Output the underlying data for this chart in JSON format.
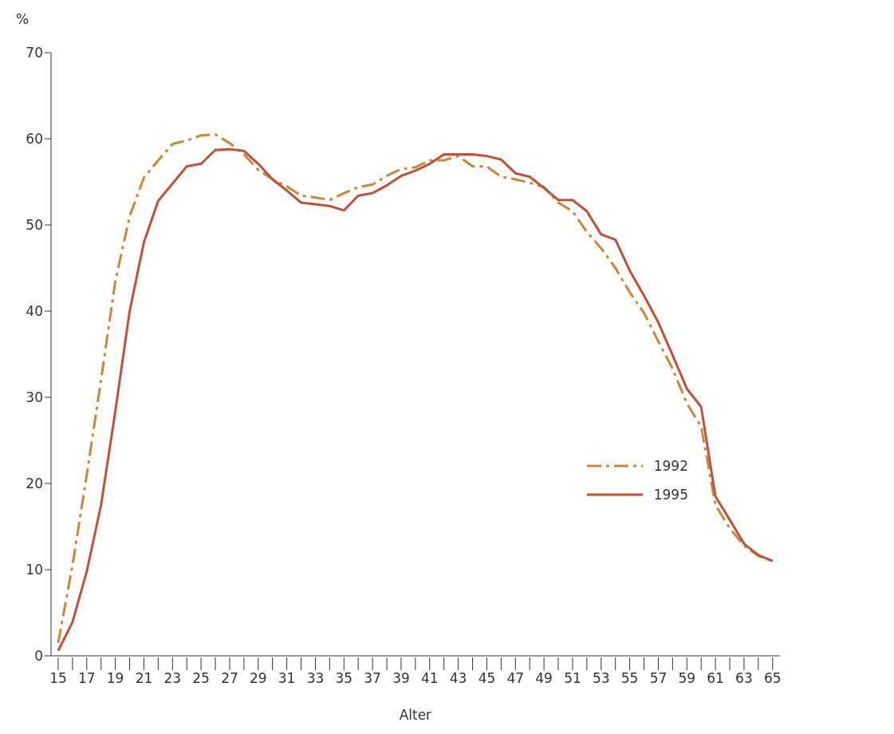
{
  "chart_data": {
    "type": "line",
    "xlabel": "Alter",
    "ylabel": "%",
    "x": [
      15,
      16,
      17,
      18,
      19,
      20,
      21,
      22,
      23,
      24,
      25,
      26,
      27,
      28,
      29,
      30,
      31,
      32,
      33,
      34,
      35,
      36,
      37,
      38,
      39,
      40,
      41,
      42,
      43,
      44,
      45,
      46,
      47,
      48,
      49,
      50,
      51,
      52,
      53,
      54,
      55,
      56,
      57,
      58,
      59,
      60,
      61,
      62,
      63,
      64,
      65
    ],
    "series": [
      {
        "name": "1992",
        "color": "#c8893e",
        "line_style": "dashed",
        "values": [
          1.5,
          10.5,
          21,
          32,
          43.5,
          51,
          55.5,
          57.5,
          59.4,
          59.8,
          60.4,
          60.5,
          59.5,
          58.2,
          56.4,
          55.3,
          54.5,
          53.4,
          53.2,
          52.9,
          53.7,
          54.4,
          54.7,
          55.7,
          56.5,
          56.7,
          57.5,
          57.5,
          58.0,
          56.8,
          56.8,
          55.6,
          55.3,
          54.9,
          54.4,
          52.6,
          51.6,
          49.2,
          47.3,
          45.0,
          42.2,
          39.8,
          36.5,
          33.3,
          29.3,
          26.6,
          17.5,
          14.8,
          12.8,
          11.6,
          11.0
        ]
      },
      {
        "name": "1995",
        "color": "#c0513a",
        "line_style": "solid",
        "values": [
          0.6,
          3.9,
          9.8,
          17.5,
          28.4,
          40.0,
          48.0,
          52.8,
          54.8,
          56.8,
          57.1,
          58.7,
          58.8,
          58.6,
          57.1,
          55.3,
          54.0,
          52.6,
          52.4,
          52.2,
          51.7,
          53.4,
          53.7,
          54.6,
          55.7,
          56.3,
          57.1,
          58.2,
          58.2,
          58.2,
          58.0,
          57.6,
          56.0,
          55.6,
          54.3,
          52.9,
          52.9,
          51.6,
          48.9,
          48.3,
          44.7,
          41.8,
          38.7,
          34.9,
          31.0,
          28.9,
          18.5,
          15.8,
          13.0,
          11.7,
          11.0
        ]
      }
    ],
    "xlim": [
      14.5,
      65.5
    ],
    "xticks": [
      15,
      {
        "value": 16,
        "label": null
      },
      17,
      {
        "value": 18,
        "label": null
      },
      19,
      {
        "value": 20,
        "label": null
      },
      21,
      {
        "value": 22,
        "label": null
      },
      23,
      {
        "value": 24,
        "label": null
      },
      25,
      {
        "value": 26,
        "label": null
      },
      27,
      {
        "value": 28,
        "label": null
      },
      29,
      {
        "value": 30,
        "label": null
      },
      31,
      {
        "value": 32,
        "label": null
      },
      33,
      {
        "value": 34,
        "label": null
      },
      35,
      {
        "value": 36,
        "label": null
      },
      37,
      {
        "value": 38,
        "label": null
      },
      39,
      {
        "value": 40,
        "label": null
      },
      41,
      {
        "value": 42,
        "label": null
      },
      43,
      {
        "value": 44,
        "label": null
      },
      45,
      {
        "value": 46,
        "label": null
      },
      47,
      {
        "value": 48,
        "label": null
      },
      49,
      {
        "value": 50,
        "label": null
      },
      51,
      {
        "value": 52,
        "label": null
      },
      53,
      {
        "value": 54,
        "label": null
      },
      55,
      {
        "value": 56,
        "label": null
      },
      57,
      {
        "value": 58,
        "label": null
      },
      59,
      {
        "value": 60,
        "label": null
      },
      61,
      {
        "value": 62,
        "label": null
      },
      63,
      {
        "value": 64,
        "label": null
      },
      65
    ],
    "ylim": [
      0,
      70
    ],
    "yticks": [
      0,
      10,
      20,
      30,
      40,
      50,
      60,
      70
    ],
    "grid": false,
    "legend": "right",
    "marker": "none"
  }
}
